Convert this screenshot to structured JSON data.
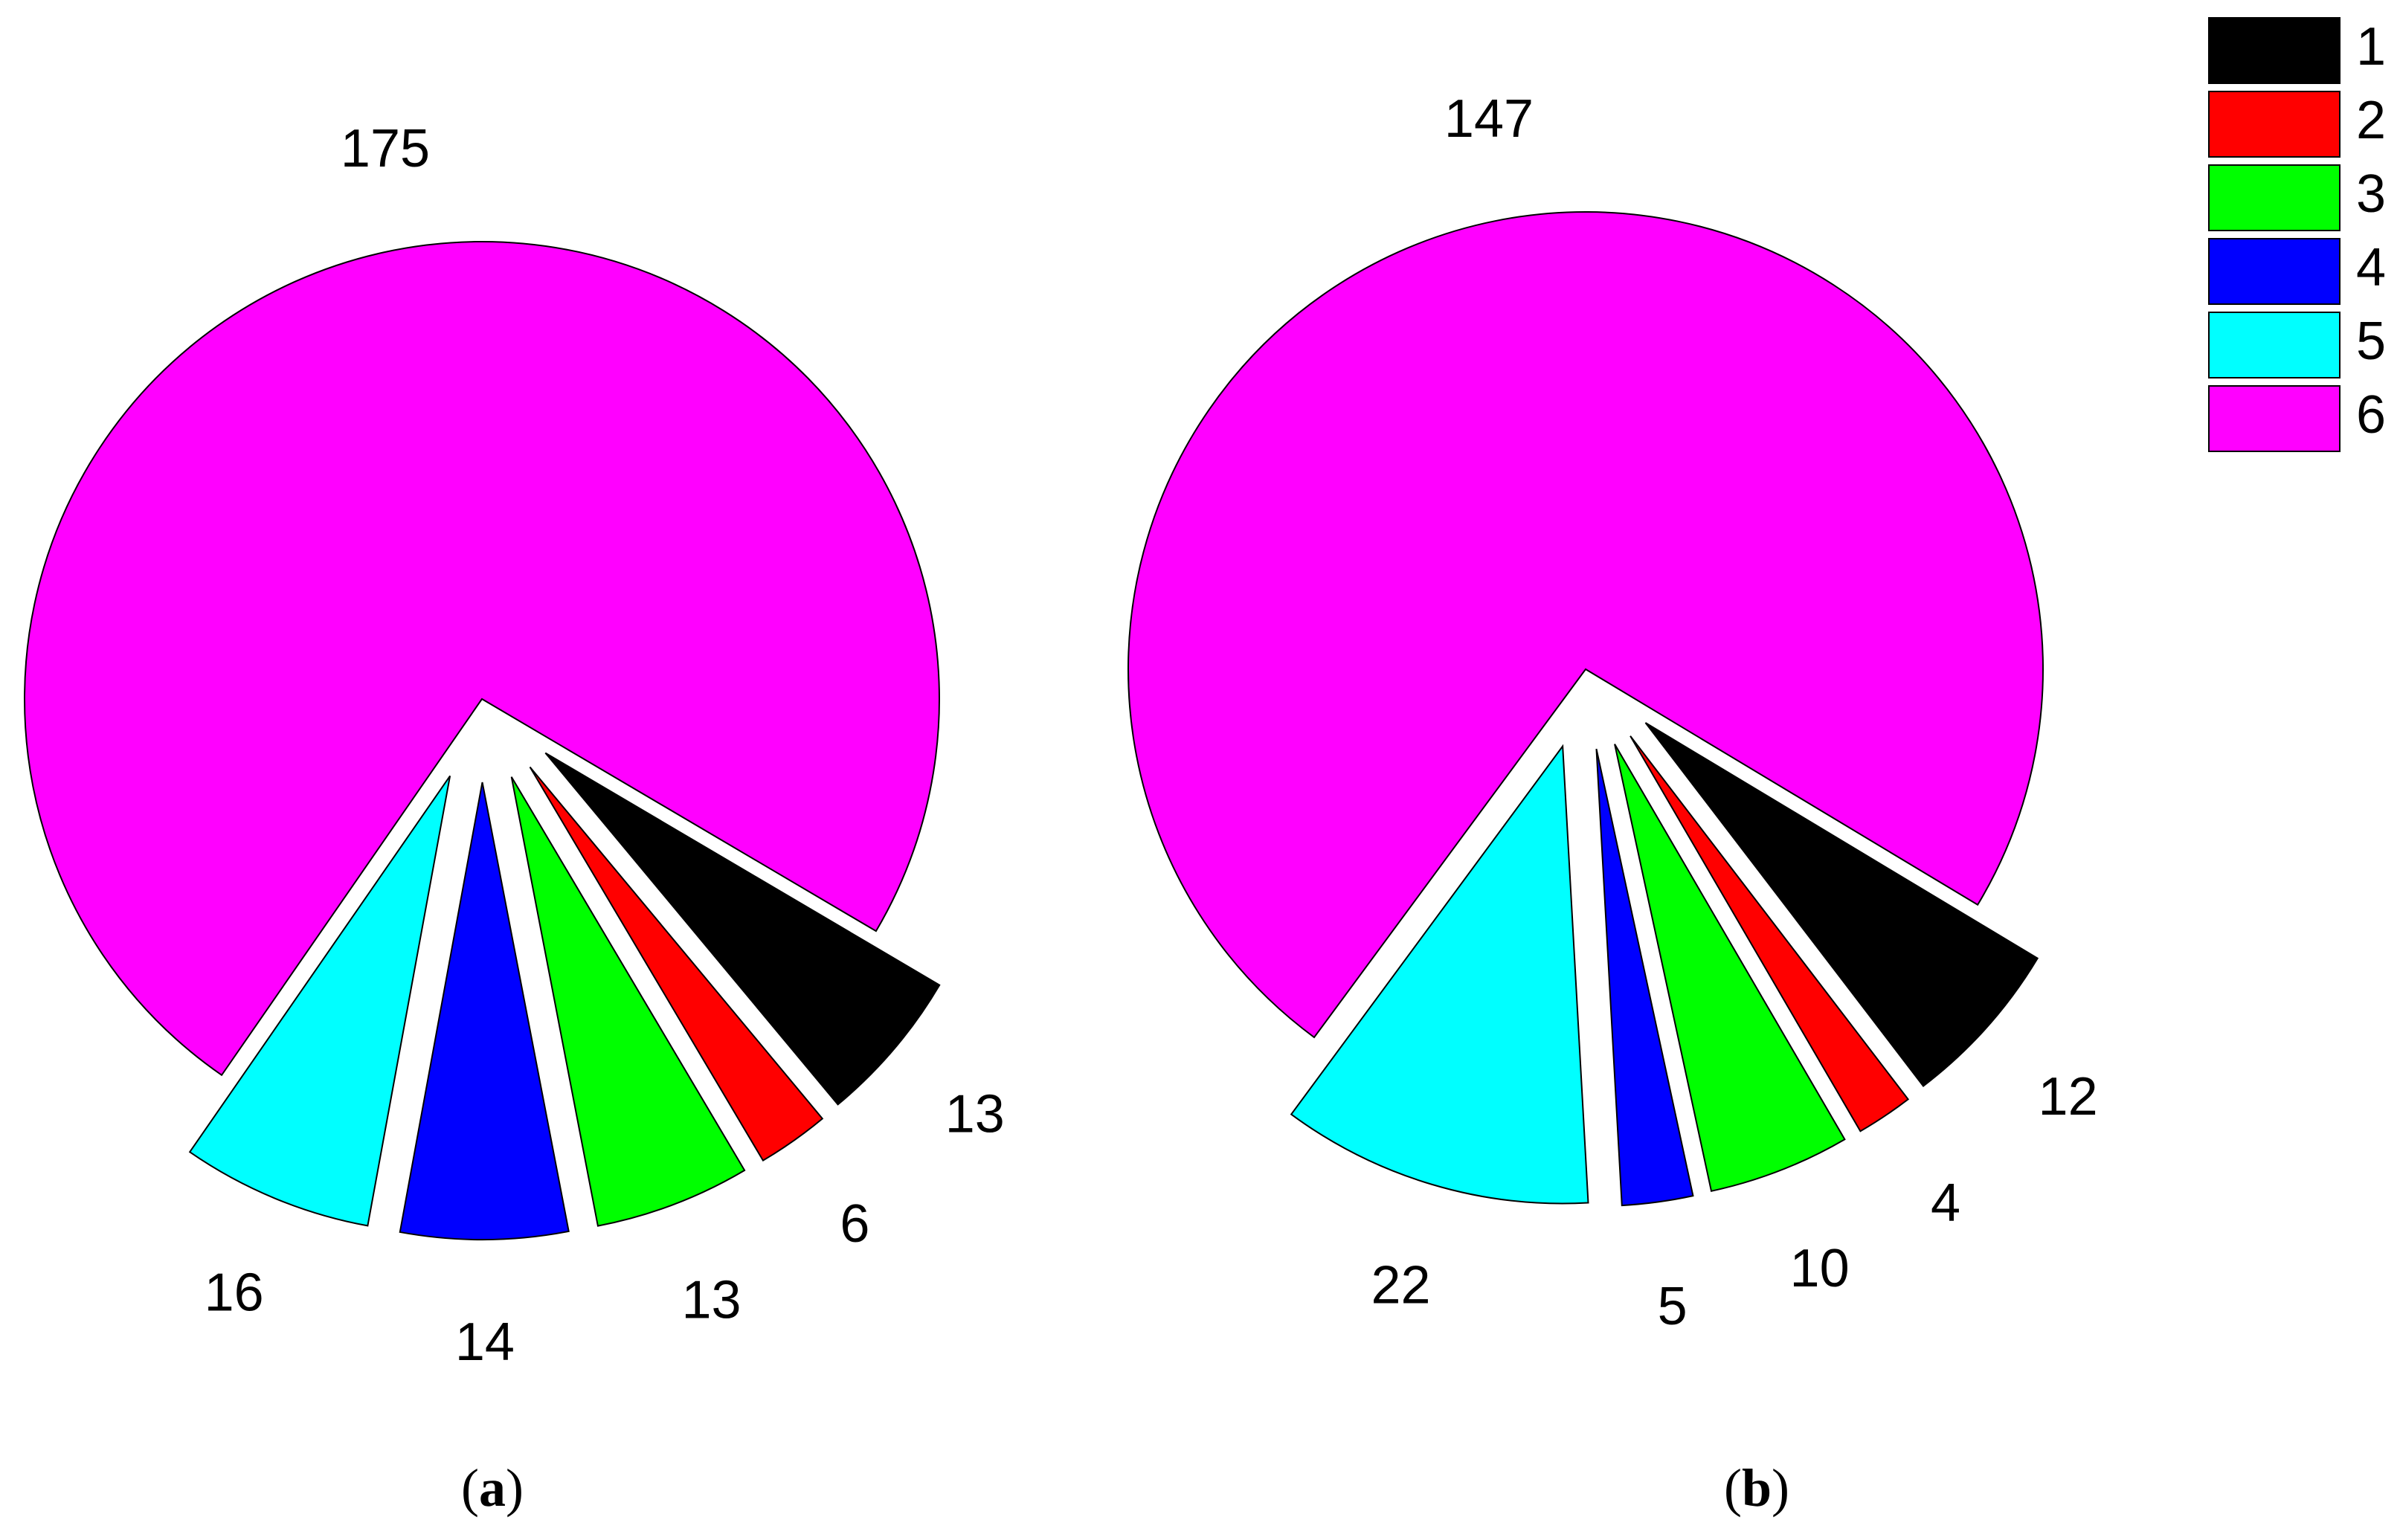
{
  "chart_data": [
    {
      "type": "pie",
      "caption": "a",
      "categories": [
        "1",
        "2",
        "3",
        "4",
        "5",
        "6"
      ],
      "values": [
        13,
        6,
        13,
        14,
        16,
        175
      ],
      "colors": [
        "#000000",
        "#ff0000",
        "#00ff00",
        "#0000ff",
        "#00ffff",
        "#ff00ff"
      ],
      "exploded": [
        true,
        true,
        true,
        true,
        true,
        false
      ],
      "legend_position": "top-right"
    },
    {
      "type": "pie",
      "caption": "b",
      "categories": [
        "1",
        "2",
        "3",
        "4",
        "5",
        "6"
      ],
      "values": [
        12,
        4,
        10,
        5,
        22,
        147
      ],
      "colors": [
        "#000000",
        "#ff0000",
        "#00ff00",
        "#0000ff",
        "#00ffff",
        "#ff00ff"
      ],
      "exploded": [
        true,
        true,
        true,
        true,
        true,
        false
      ],
      "legend_position": "top-right"
    }
  ],
  "legend": {
    "items": [
      {
        "label": "1",
        "color": "#000000"
      },
      {
        "label": "2",
        "color": "#ff0000"
      },
      {
        "label": "3",
        "color": "#00ff00"
      },
      {
        "label": "4",
        "color": "#0000ff"
      },
      {
        "label": "5",
        "color": "#00ffff"
      },
      {
        "label": "6",
        "color": "#ff00ff"
      }
    ]
  },
  "captions": {
    "a": "a",
    "b": "b"
  }
}
